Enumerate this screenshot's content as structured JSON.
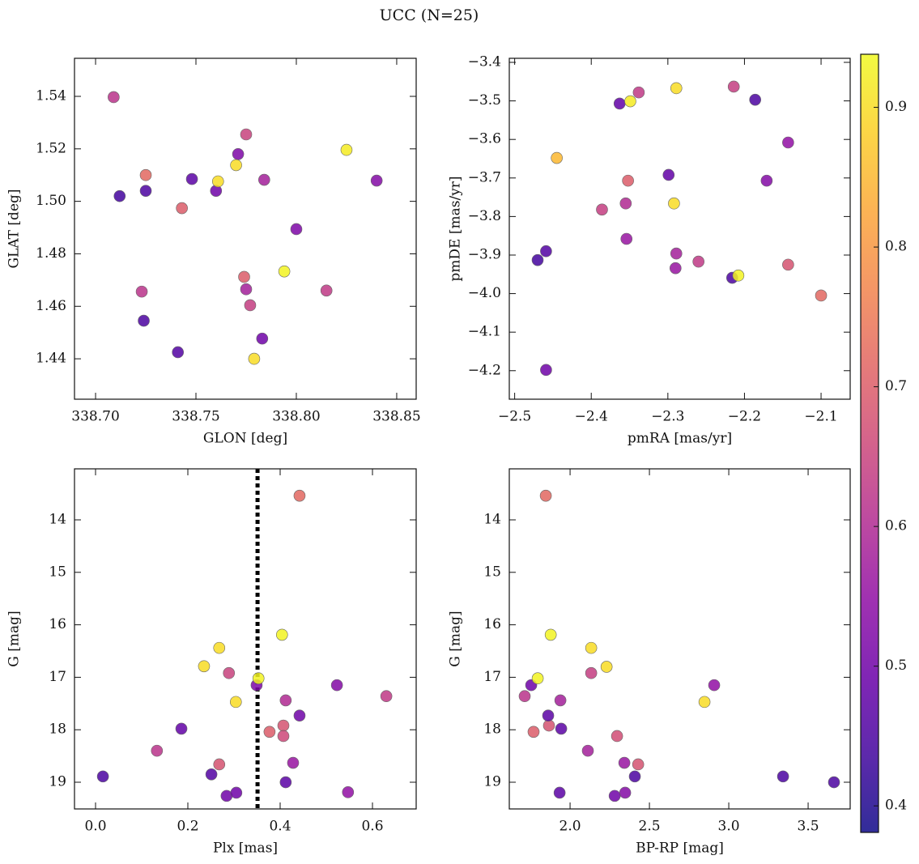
{
  "title": "UCC (N=25)",
  "colorbar": {
    "cmap": "plasma",
    "lim": [
      0.381,
      0.938
    ],
    "ticks": [
      0.4,
      0.5,
      0.6,
      0.7,
      0.8,
      0.9
    ]
  },
  "chart_data": [
    {
      "type": "scatter",
      "xlabel": "GLON [deg]",
      "ylabel": "GLAT [deg]",
      "x": [
        338.709,
        338.712,
        338.725,
        338.725,
        338.723,
        338.724,
        338.741,
        338.743,
        338.748,
        338.76,
        338.761,
        338.77,
        338.771,
        338.775,
        338.774,
        338.775,
        338.777,
        338.784,
        338.783,
        338.779,
        338.794,
        338.8,
        338.815,
        338.825,
        338.84
      ],
      "y": [
        1.5397,
        1.502,
        1.51,
        1.504,
        1.4656,
        1.4545,
        1.4425,
        1.4974,
        1.5085,
        1.504,
        1.5076,
        1.5138,
        1.518,
        1.5255,
        1.4712,
        1.4665,
        1.4604,
        1.5082,
        1.4477,
        1.44,
        1.4733,
        1.4894,
        1.466,
        1.5196,
        1.5079
      ],
      "c": [
        0.62,
        0.44,
        0.72,
        0.45,
        0.62,
        0.45,
        0.46,
        0.7,
        0.47,
        0.5,
        0.9,
        0.9,
        0.52,
        0.65,
        0.7,
        0.58,
        0.64,
        0.58,
        0.5,
        0.9,
        0.93,
        0.52,
        0.63,
        0.92,
        0.53
      ],
      "xlim": [
        338.6895,
        338.8597
      ],
      "ylim": [
        1.4246,
        1.5545
      ],
      "xticks": [
        {
          "value": 338.7,
          "label": "338.70"
        },
        {
          "value": 338.75,
          "label": "338.75"
        },
        {
          "value": 338.8,
          "label": "338.80"
        },
        {
          "value": 338.85,
          "label": "338.85"
        }
      ],
      "yticks": [
        1.44,
        1.46,
        1.48,
        {
          "value": 1.5,
          "label": "1.50"
        },
        1.52,
        1.54
      ]
    },
    {
      "type": "scatter",
      "xlabel": "pmRA [mas/yr]",
      "ylabel": "pmDE [mas/yr]",
      "x": [
        -2.47,
        -2.459,
        -2.459,
        -2.445,
        -2.386,
        -2.363,
        -2.349,
        -2.338,
        -2.355,
        -2.354,
        -2.352,
        -2.299,
        -2.289,
        -2.292,
        -2.289,
        -2.29,
        -2.26,
        -2.214,
        -2.216,
        -2.208,
        -2.186,
        -2.171,
        -2.143,
        -2.143,
        -2.1
      ],
      "y": [
        -3.913,
        -3.89,
        -4.198,
        -3.648,
        -3.782,
        -3.507,
        -3.501,
        -3.478,
        -3.766,
        -3.858,
        -3.707,
        -3.692,
        -3.467,
        -3.766,
        -3.896,
        -3.934,
        -3.917,
        -3.463,
        -3.959,
        -3.953,
        -3.497,
        -3.707,
        -3.608,
        -3.925,
        -4.005
      ],
      "c": [
        0.44,
        0.46,
        0.5,
        0.85,
        0.64,
        0.48,
        0.92,
        0.63,
        0.6,
        0.56,
        0.7,
        0.48,
        0.9,
        0.9,
        0.58,
        0.56,
        0.63,
        0.64,
        0.45,
        0.93,
        0.45,
        0.53,
        0.55,
        0.68,
        0.72
      ],
      "xlim": [
        -2.507,
        -2.062
      ],
      "ylim": [
        -4.274,
        -3.3895
      ],
      "xticks": [
        {
          "value": -2.5,
          "label": "−2.5"
        },
        {
          "value": -2.4,
          "label": "−2.4"
        },
        {
          "value": -2.3,
          "label": "−2.3"
        },
        {
          "value": -2.2,
          "label": "−2.2"
        },
        {
          "value": -2.1,
          "label": "−2.1"
        }
      ],
      "yticks": [
        {
          "value": -4.2,
          "label": "−4.2"
        },
        {
          "value": -4.1,
          "label": "−4.1"
        },
        {
          "value": -4.0,
          "label": "−4.0"
        },
        {
          "value": -3.9,
          "label": "−3.9"
        },
        {
          "value": -3.8,
          "label": "−3.8"
        },
        {
          "value": -3.7,
          "label": "−3.7"
        },
        {
          "value": -3.6,
          "label": "−3.6"
        },
        {
          "value": -3.5,
          "label": "−3.5"
        },
        {
          "value": -3.4,
          "label": "−3.4"
        }
      ]
    },
    {
      "type": "scatter",
      "xlabel": "Plx [mas]",
      "ylabel": "G [mag]",
      "x": [
        0.016,
        0.133,
        0.186,
        0.235,
        0.268,
        0.289,
        0.304,
        0.268,
        0.251,
        0.284,
        0.305,
        0.349,
        0.353,
        0.377,
        0.404,
        0.407,
        0.407,
        0.412,
        0.428,
        0.412,
        0.442,
        0.442,
        0.523,
        0.547,
        0.63
      ],
      "y": [
        18.89,
        18.4,
        17.98,
        16.79,
        16.44,
        16.92,
        17.47,
        18.66,
        18.85,
        19.26,
        19.2,
        17.15,
        17.02,
        18.04,
        16.19,
        17.92,
        18.12,
        17.44,
        18.63,
        19.0,
        13.54,
        17.73,
        17.15,
        19.19,
        17.36
      ],
      "c": [
        0.45,
        0.62,
        0.48,
        0.9,
        0.9,
        0.65,
        0.9,
        0.68,
        0.46,
        0.5,
        0.5,
        0.52,
        0.93,
        0.7,
        0.93,
        0.68,
        0.66,
        0.6,
        0.56,
        0.47,
        0.72,
        0.5,
        0.53,
        0.55,
        0.63
      ],
      "xlim": [
        -0.0456,
        0.6947
      ],
      "ylim": [
        19.509,
        13.028
      ],
      "xticks": [
        {
          "value": 0.0,
          "label": "0.0"
        },
        0.2,
        0.4,
        0.6
      ],
      "yticks": [
        14,
        15,
        16,
        17,
        18,
        19
      ],
      "vline": 0.351
    },
    {
      "type": "scatter",
      "xlabel": "BP-RP [mag]",
      "ylabel": "G [mag]",
      "x": [
        1.714,
        1.755,
        1.796,
        1.77,
        1.847,
        1.867,
        1.878,
        1.862,
        1.939,
        1.944,
        1.934,
        2.133,
        2.133,
        2.23,
        2.112,
        2.296,
        2.342,
        2.347,
        2.281,
        2.429,
        2.408,
        2.847,
        2.908,
        3.342,
        3.663
      ],
      "y": [
        17.36,
        17.15,
        17.02,
        18.04,
        13.54,
        17.92,
        16.19,
        17.73,
        17.44,
        17.98,
        19.2,
        16.44,
        16.92,
        16.8,
        18.4,
        18.12,
        18.63,
        19.2,
        19.26,
        18.66,
        18.89,
        17.47,
        17.15,
        18.89,
        19.0
      ],
      "c": [
        0.62,
        0.5,
        0.93,
        0.7,
        0.72,
        0.68,
        0.93,
        0.47,
        0.58,
        0.47,
        0.47,
        0.9,
        0.64,
        0.9,
        0.58,
        0.67,
        0.56,
        0.53,
        0.5,
        0.68,
        0.45,
        0.9,
        0.55,
        0.45,
        0.45
      ],
      "xlim": [
        1.617,
        3.765
      ],
      "ylim": [
        19.509,
        13.028
      ],
      "xticks": [
        {
          "value": 2.0,
          "label": "2.0"
        },
        2.5,
        {
          "value": 3.0,
          "label": "3.0"
        },
        3.5
      ],
      "yticks": [
        14,
        15,
        16,
        17,
        18,
        19
      ]
    }
  ]
}
